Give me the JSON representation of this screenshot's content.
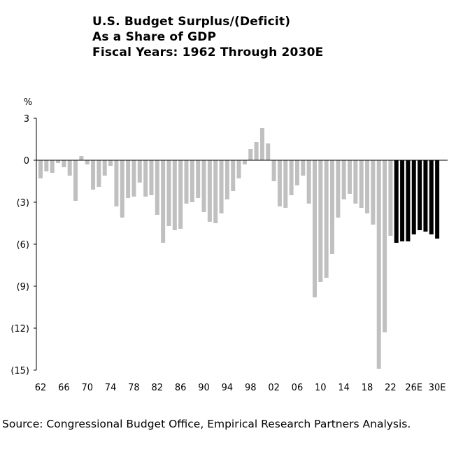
{
  "chart_data": {
    "type": "bar",
    "title": [
      "U.S. Budget Surplus/(Deficit)",
      "As a Share of GDP",
      "Fiscal Years: 1962 Through 2030E"
    ],
    "ylabel": "%",
    "ylim": [
      -15,
      3
    ],
    "yticks": [
      3,
      0,
      -3,
      -6,
      -9,
      -12,
      -15
    ],
    "ytick_labels": [
      "3",
      "0",
      "(3)",
      "(6)",
      "(9)",
      "(12)",
      "(15)"
    ],
    "xtick_labels": [
      "62",
      "66",
      "70",
      "74",
      "78",
      "82",
      "86",
      "90",
      "94",
      "98",
      "02",
      "06",
      "10",
      "14",
      "18",
      "22",
      "26E",
      "30E"
    ],
    "categories": [
      "62",
      "63",
      "64",
      "65",
      "66",
      "67",
      "68",
      "69",
      "70",
      "71",
      "72",
      "73",
      "74",
      "75",
      "76",
      "77",
      "78",
      "79",
      "80",
      "81",
      "82",
      "83",
      "84",
      "85",
      "86",
      "87",
      "88",
      "89",
      "90",
      "91",
      "92",
      "93",
      "94",
      "95",
      "96",
      "97",
      "98",
      "99",
      "00",
      "01",
      "02",
      "03",
      "04",
      "05",
      "06",
      "07",
      "08",
      "09",
      "10",
      "11",
      "12",
      "13",
      "14",
      "15",
      "16",
      "17",
      "18",
      "19",
      "20",
      "21",
      "22",
      "23E",
      "24E",
      "25E",
      "26E",
      "27E",
      "28E",
      "29E",
      "30E"
    ],
    "series": [
      {
        "values": [
          -1.3,
          -0.8,
          -0.9,
          -0.2,
          -0.5,
          -1.1,
          -2.9,
          0.3,
          -0.3,
          -2.1,
          -1.9,
          -1.1,
          -0.4,
          -3.3,
          -4.1,
          -2.7,
          -2.6,
          -1.6,
          -2.6,
          -2.5,
          -3.9,
          -5.9,
          -4.7,
          -5.0,
          -4.9,
          -3.1,
          -3.0,
          -2.7,
          -3.7,
          -4.4,
          -4.5,
          -3.8,
          -2.8,
          -2.2,
          -1.3,
          -0.3,
          0.8,
          1.3,
          2.3,
          1.2,
          -1.5,
          -3.3,
          -3.4,
          -2.5,
          -1.8,
          -1.1,
          -3.1,
          -9.8,
          -8.7,
          -8.4,
          -6.7,
          -4.1,
          -2.8,
          -2.4,
          -3.1,
          -3.4,
          -3.8,
          -4.6,
          -14.9,
          -12.3,
          -5.4,
          -5.9,
          -5.8,
          -5.8,
          -5.3,
          -5.0,
          -5.1,
          -5.3,
          -5.6
        ],
        "colors": [
          "#c0c0c0",
          "#c0c0c0",
          "#c0c0c0",
          "#c0c0c0",
          "#c0c0c0",
          "#c0c0c0",
          "#c0c0c0",
          "#c0c0c0",
          "#c0c0c0",
          "#c0c0c0",
          "#c0c0c0",
          "#c0c0c0",
          "#c0c0c0",
          "#c0c0c0",
          "#c0c0c0",
          "#c0c0c0",
          "#c0c0c0",
          "#c0c0c0",
          "#c0c0c0",
          "#c0c0c0",
          "#c0c0c0",
          "#c0c0c0",
          "#c0c0c0",
          "#c0c0c0",
          "#c0c0c0",
          "#c0c0c0",
          "#c0c0c0",
          "#c0c0c0",
          "#c0c0c0",
          "#c0c0c0",
          "#c0c0c0",
          "#c0c0c0",
          "#c0c0c0",
          "#c0c0c0",
          "#c0c0c0",
          "#c0c0c0",
          "#c0c0c0",
          "#c0c0c0",
          "#c0c0c0",
          "#c0c0c0",
          "#c0c0c0",
          "#c0c0c0",
          "#c0c0c0",
          "#c0c0c0",
          "#c0c0c0",
          "#c0c0c0",
          "#c0c0c0",
          "#c0c0c0",
          "#c0c0c0",
          "#c0c0c0",
          "#c0c0c0",
          "#c0c0c0",
          "#c0c0c0",
          "#c0c0c0",
          "#c0c0c0",
          "#c0c0c0",
          "#c0c0c0",
          "#c0c0c0",
          "#c0c0c0",
          "#c0c0c0",
          "#c0c0c0",
          "#000000",
          "#000000",
          "#000000",
          "#000000",
          "#000000",
          "#000000",
          "#000000",
          "#000000"
        ]
      }
    ],
    "actual_color": "#c0c0c0",
    "estimate_color": "#000000",
    "grid": false,
    "legend": "none"
  },
  "source": "Source: Congressional Budget Office, Empirical Research Partners Analysis."
}
